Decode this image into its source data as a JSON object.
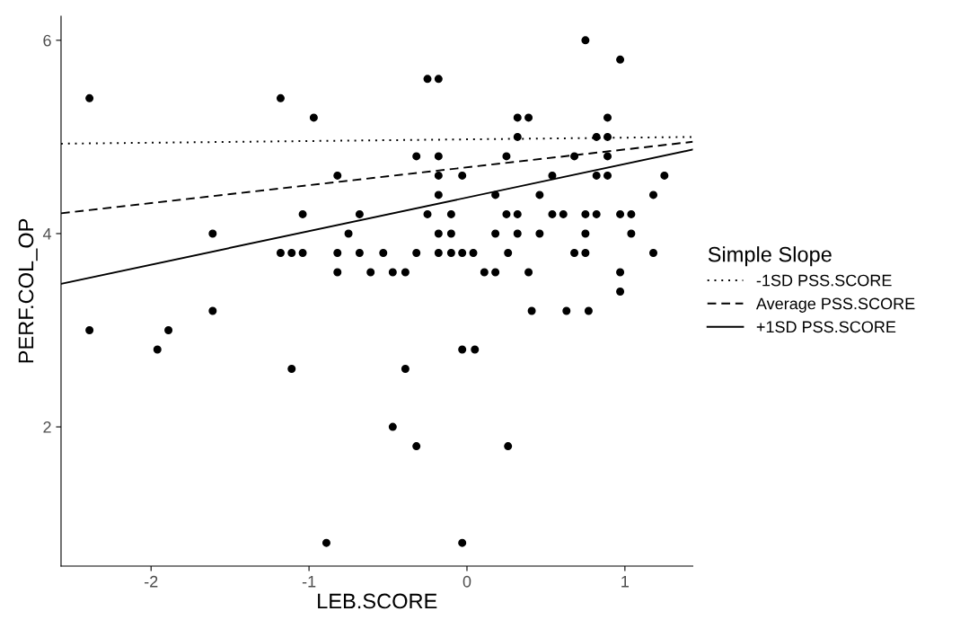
{
  "chart_data": {
    "type": "scatter",
    "xlabel": "LEB.SCORE",
    "ylabel": "PERF.COL_OP",
    "legend_title": "Simple Slope",
    "xlim": [
      -2.57,
      1.43
    ],
    "ylim": [
      0.56,
      6.25
    ],
    "xticks": [
      -2,
      -1,
      0,
      1
    ],
    "yticks": [
      2,
      4,
      6
    ],
    "grid": false,
    "legend": "right",
    "series": [
      {
        "color": "#000000",
        "marker": "circle",
        "x": [
          -2.39,
          -1.18,
          -2.39,
          -1.89,
          -1.96,
          -0.03,
          0.05,
          -1.61,
          -0.75,
          -0.18,
          -0.1,
          0.18,
          0.32,
          0.46,
          0.75,
          1.04,
          -1.61,
          0.41,
          0.63,
          0.77,
          -0.97,
          0.32,
          0.39,
          0.89,
          -1.18,
          -1.11,
          -1.04,
          -0.82,
          -0.68,
          -0.53,
          -0.32,
          -0.18,
          -0.1,
          -0.03,
          0.04,
          0.26,
          0.68,
          0.75,
          1.18,
          -1.04,
          -0.68,
          -0.25,
          -0.1,
          0.25,
          0.32,
          0.54,
          0.61,
          0.75,
          0.82,
          0.97,
          1.04,
          -1.11,
          -0.39,
          -0.82,
          -0.18,
          -0.03,
          0.54,
          0.82,
          0.89,
          1.25,
          -0.82,
          -0.61,
          -0.47,
          -0.39,
          0.11,
          0.18,
          0.39,
          0.97,
          -0.47,
          -0.89,
          -0.03,
          -0.32,
          -0.18,
          0.25,
          0.68,
          0.89,
          -0.32,
          0.26,
          -0.25,
          -0.18,
          0.32,
          0.82,
          0.89,
          0.75,
          0.97,
          -0.18,
          0.18,
          0.46,
          1.18,
          0.97
        ],
        "values": [
          5.4,
          5.4,
          3.0,
          3.0,
          2.8,
          2.8,
          2.8,
          4.0,
          4.0,
          4.0,
          4.0,
          4.0,
          4.0,
          4.0,
          4.0,
          4.0,
          3.2,
          3.2,
          3.2,
          3.2,
          5.2,
          5.2,
          5.2,
          5.2,
          3.8,
          3.8,
          3.8,
          3.8,
          3.8,
          3.8,
          3.8,
          3.8,
          3.8,
          3.8,
          3.8,
          3.8,
          3.8,
          3.8,
          3.8,
          4.2,
          4.2,
          4.2,
          4.2,
          4.2,
          4.2,
          4.2,
          4.2,
          4.2,
          4.2,
          4.2,
          4.2,
          2.6,
          2.6,
          4.6,
          4.6,
          4.6,
          4.6,
          4.6,
          4.6,
          4.6,
          3.6,
          3.6,
          3.6,
          3.6,
          3.6,
          3.6,
          3.6,
          3.6,
          2.0,
          0.8,
          0.8,
          4.8,
          4.8,
          4.8,
          4.8,
          4.8,
          1.8,
          1.8,
          5.6,
          5.6,
          5.0,
          5.0,
          5.0,
          6.0,
          5.8,
          4.4,
          4.4,
          4.4,
          4.4,
          3.4
        ]
      },
      {
        "type": "line",
        "name": "-1SD PSS.SCORE",
        "color": "#000000",
        "line_style": "dotted",
        "x": [
          -2.57,
          1.43
        ],
        "values": [
          4.93,
          5.0
        ]
      },
      {
        "type": "line",
        "name": "Average PSS.SCORE",
        "color": "#000000",
        "line_style": "dashed",
        "x": [
          -2.57,
          1.43
        ],
        "values": [
          4.21,
          4.95
        ]
      },
      {
        "type": "line",
        "name": "+1SD PSS.SCORE",
        "color": "#000000",
        "line_style": "solid",
        "x": [
          -2.57,
          1.43
        ],
        "values": [
          3.48,
          4.87
        ]
      }
    ]
  }
}
